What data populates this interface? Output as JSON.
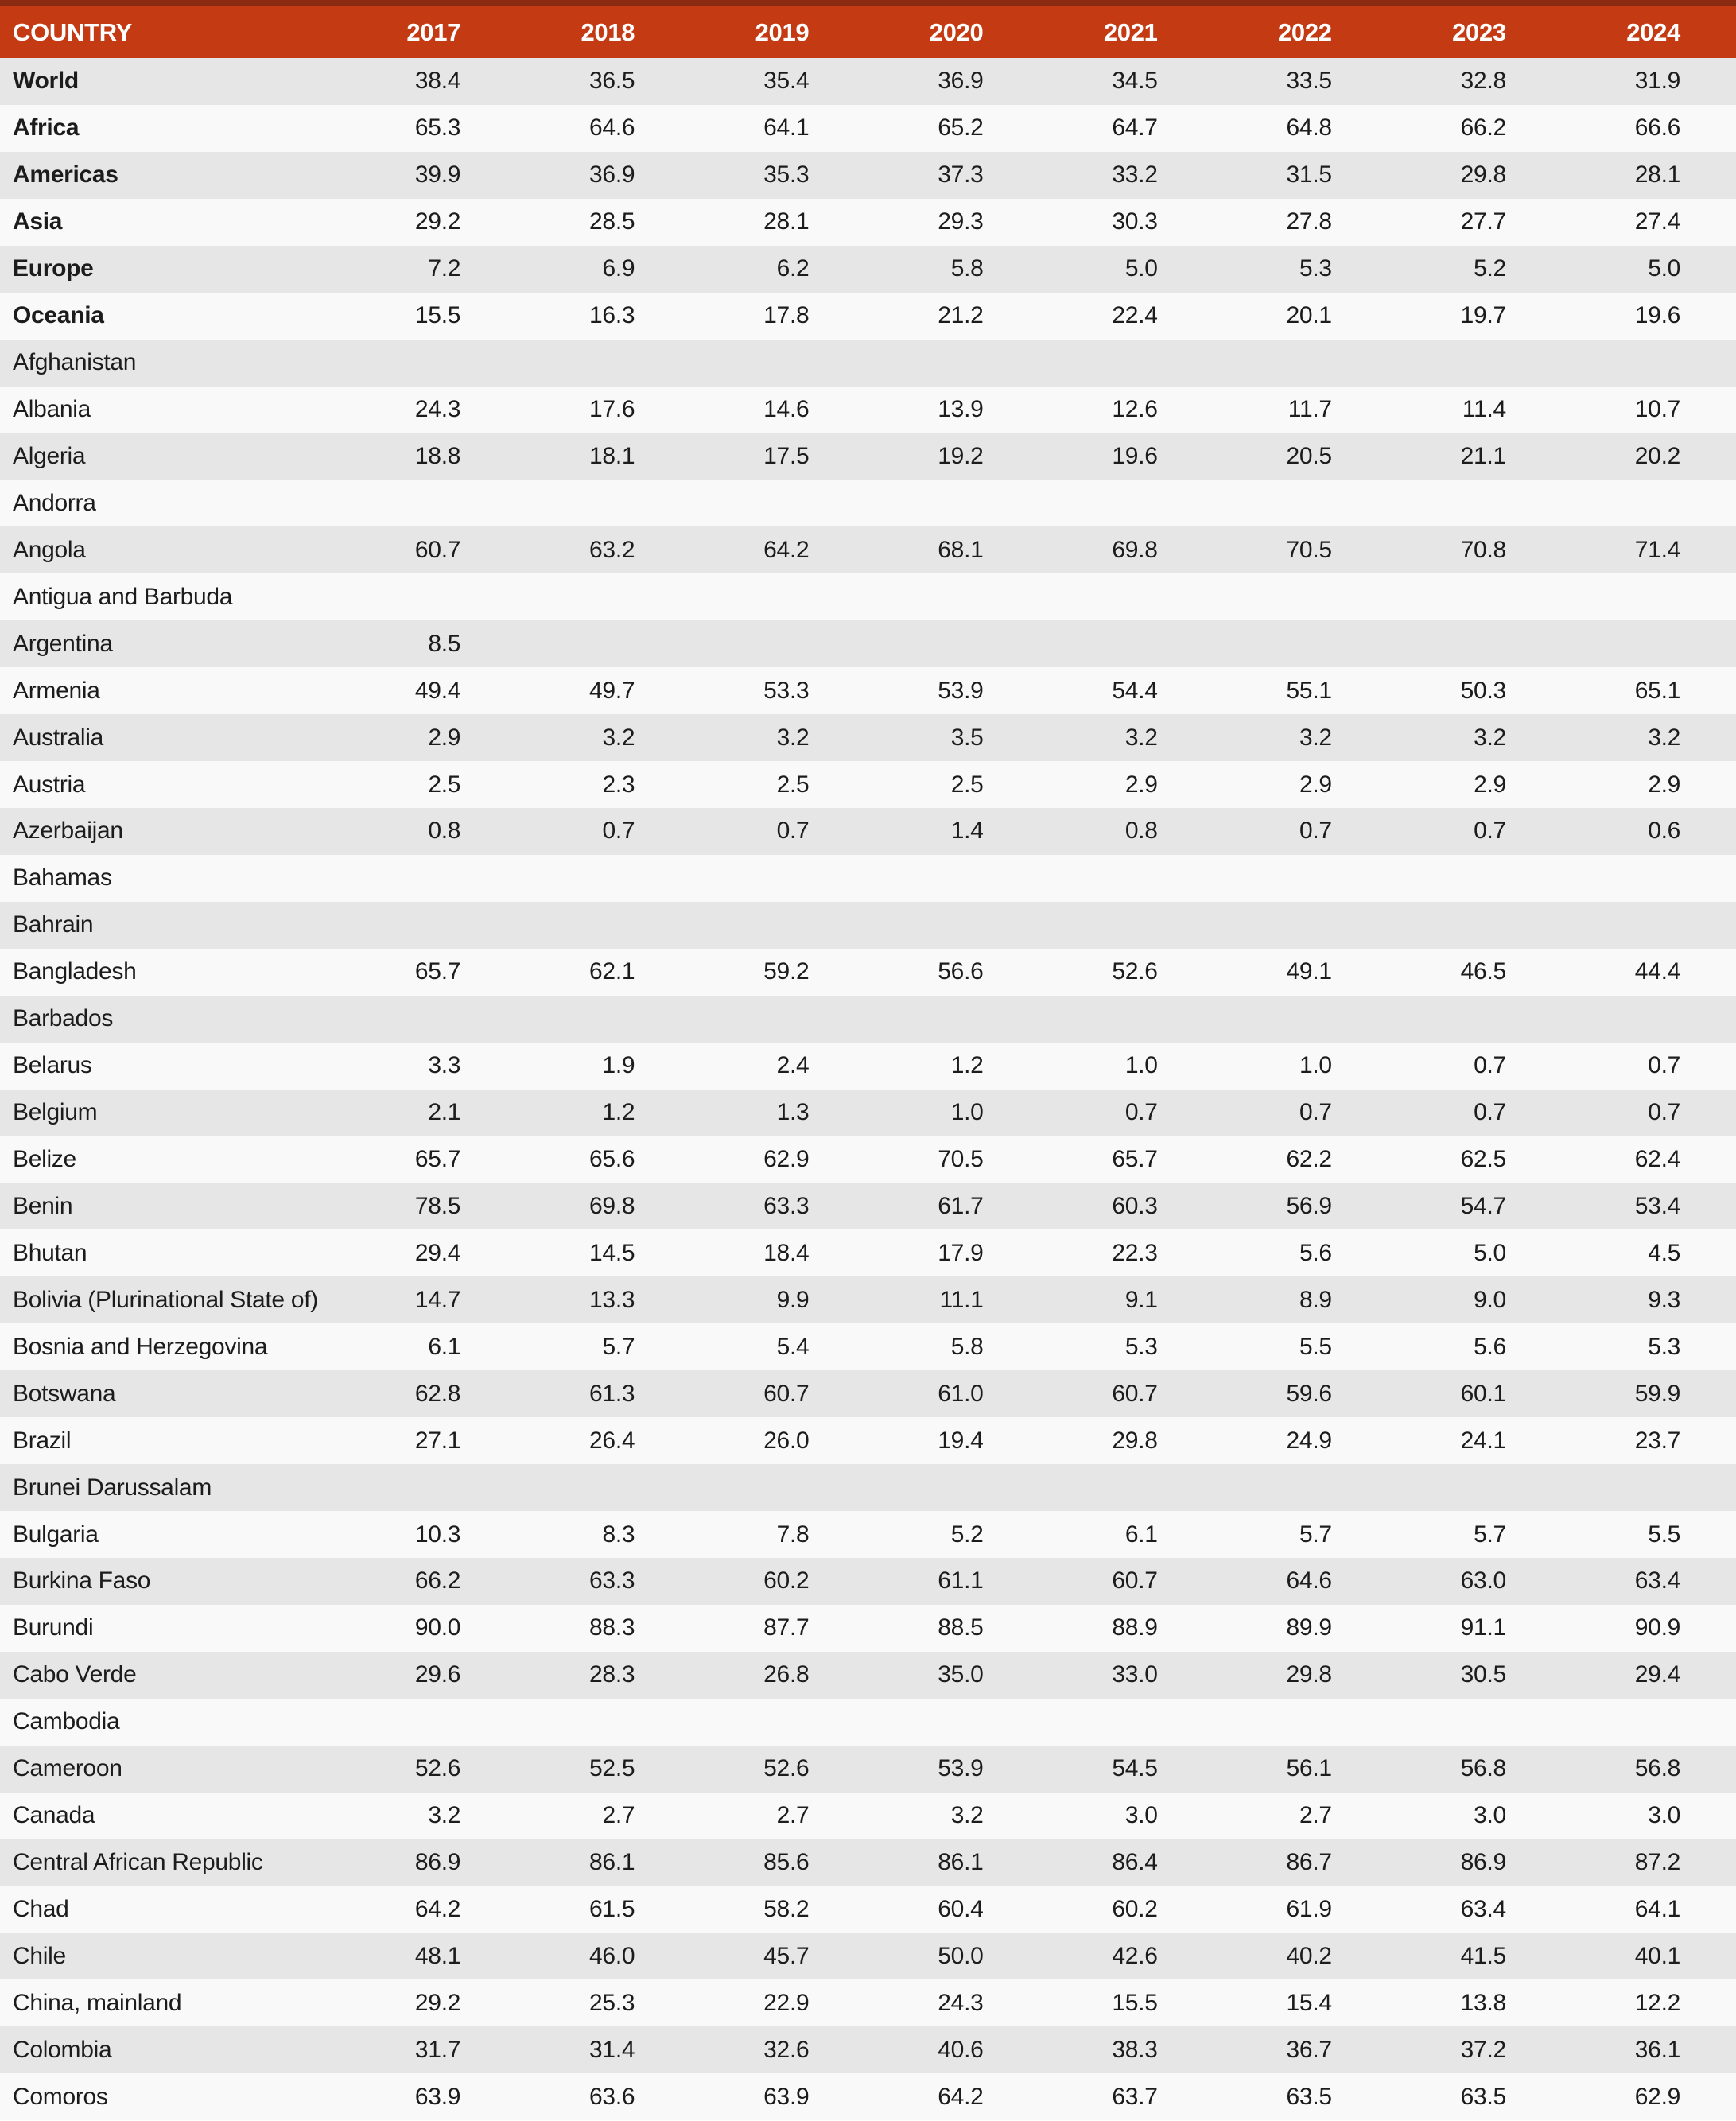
{
  "colors": {
    "header_bg": "#c43a13",
    "header_top_band": "#8a2b11",
    "header_text": "#ffffff",
    "row_odd_bg": "#e7e6e6",
    "row_even_bg": "#f9f9f9",
    "body_text": "#1c1c1c"
  },
  "table": {
    "country_label": "COUNTRY",
    "years": [
      "2017",
      "2018",
      "2019",
      "2020",
      "2021",
      "2022",
      "2023",
      "2024"
    ],
    "rows": [
      {
        "name": "World",
        "bold": true,
        "values": [
          "38.4",
          "36.5",
          "35.4",
          "36.9",
          "34.5",
          "33.5",
          "32.8",
          "31.9"
        ]
      },
      {
        "name": "Africa",
        "bold": true,
        "values": [
          "65.3",
          "64.6",
          "64.1",
          "65.2",
          "64.7",
          "64.8",
          "66.2",
          "66.6"
        ]
      },
      {
        "name": "Americas",
        "bold": true,
        "values": [
          "39.9",
          "36.9",
          "35.3",
          "37.3",
          "33.2",
          "31.5",
          "29.8",
          "28.1"
        ]
      },
      {
        "name": "Asia",
        "bold": true,
        "values": [
          "29.2",
          "28.5",
          "28.1",
          "29.3",
          "30.3",
          "27.8",
          "27.7",
          "27.4"
        ]
      },
      {
        "name": "Europe",
        "bold": true,
        "values": [
          "7.2",
          "6.9",
          "6.2",
          "5.8",
          "5.0",
          "5.3",
          "5.2",
          "5.0"
        ]
      },
      {
        "name": "Oceania",
        "bold": true,
        "values": [
          "15.5",
          "16.3",
          "17.8",
          "21.2",
          "22.4",
          "20.1",
          "19.7",
          "19.6"
        ]
      },
      {
        "name": "Afghanistan",
        "bold": false,
        "values": [
          "",
          "",
          "",
          "",
          "",
          "",
          "",
          ""
        ]
      },
      {
        "name": "Albania",
        "bold": false,
        "values": [
          "24.3",
          "17.6",
          "14.6",
          "13.9",
          "12.6",
          "11.7",
          "11.4",
          "10.7"
        ]
      },
      {
        "name": "Algeria",
        "bold": false,
        "values": [
          "18.8",
          "18.1",
          "17.5",
          "19.2",
          "19.6",
          "20.5",
          "21.1",
          "20.2"
        ]
      },
      {
        "name": "Andorra",
        "bold": false,
        "values": [
          "",
          "",
          "",
          "",
          "",
          "",
          "",
          ""
        ]
      },
      {
        "name": "Angola",
        "bold": false,
        "values": [
          "60.7",
          "63.2",
          "64.2",
          "68.1",
          "69.8",
          "70.5",
          "70.8",
          "71.4"
        ]
      },
      {
        "name": "Antigua and Barbuda",
        "bold": false,
        "values": [
          "",
          "",
          "",
          "",
          "",
          "",
          "",
          ""
        ]
      },
      {
        "name": "Argentina",
        "bold": false,
        "values": [
          "8.5",
          "",
          "",
          "",
          "",
          "",
          "",
          ""
        ]
      },
      {
        "name": "Armenia",
        "bold": false,
        "values": [
          "49.4",
          "49.7",
          "53.3",
          "53.9",
          "54.4",
          "55.1",
          "50.3",
          "65.1"
        ]
      },
      {
        "name": "Australia",
        "bold": false,
        "values": [
          "2.9",
          "3.2",
          "3.2",
          "3.5",
          "3.2",
          "3.2",
          "3.2",
          "3.2"
        ]
      },
      {
        "name": "Austria",
        "bold": false,
        "values": [
          "2.5",
          "2.3",
          "2.5",
          "2.5",
          "2.9",
          "2.9",
          "2.9",
          "2.9"
        ]
      },
      {
        "name": "Azerbaijan",
        "bold": false,
        "values": [
          "0.8",
          "0.7",
          "0.7",
          "1.4",
          "0.8",
          "0.7",
          "0.7",
          "0.6"
        ]
      },
      {
        "name": "Bahamas",
        "bold": false,
        "values": [
          "",
          "",
          "",
          "",
          "",
          "",
          "",
          ""
        ]
      },
      {
        "name": "Bahrain",
        "bold": false,
        "values": [
          "",
          "",
          "",
          "",
          "",
          "",
          "",
          ""
        ]
      },
      {
        "name": "Bangladesh",
        "bold": false,
        "values": [
          "65.7",
          "62.1",
          "59.2",
          "56.6",
          "52.6",
          "49.1",
          "46.5",
          "44.4"
        ]
      },
      {
        "name": "Barbados",
        "bold": false,
        "values": [
          "",
          "",
          "",
          "",
          "",
          "",
          "",
          ""
        ]
      },
      {
        "name": "Belarus",
        "bold": false,
        "values": [
          "3.3",
          "1.9",
          "2.4",
          "1.2",
          "1.0",
          "1.0",
          "0.7",
          "0.7"
        ]
      },
      {
        "name": "Belgium",
        "bold": false,
        "values": [
          "2.1",
          "1.2",
          "1.3",
          "1.0",
          "0.7",
          "0.7",
          "0.7",
          "0.7"
        ]
      },
      {
        "name": "Belize",
        "bold": false,
        "values": [
          "65.7",
          "65.6",
          "62.9",
          "70.5",
          "65.7",
          "62.2",
          "62.5",
          "62.4"
        ]
      },
      {
        "name": "Benin",
        "bold": false,
        "values": [
          "78.5",
          "69.8",
          "63.3",
          "61.7",
          "60.3",
          "56.9",
          "54.7",
          "53.4"
        ]
      },
      {
        "name": "Bhutan",
        "bold": false,
        "values": [
          "29.4",
          "14.5",
          "18.4",
          "17.9",
          "22.3",
          "5.6",
          "5.0",
          "4.5"
        ]
      },
      {
        "name": "Bolivia (Plurinational State of)",
        "bold": false,
        "values": [
          "14.7",
          "13.3",
          "9.9",
          "11.1",
          "9.1",
          "8.9",
          "9.0",
          "9.3"
        ]
      },
      {
        "name": "Bosnia and Herzegovina",
        "bold": false,
        "values": [
          "6.1",
          "5.7",
          "5.4",
          "5.8",
          "5.3",
          "5.5",
          "5.6",
          "5.3"
        ]
      },
      {
        "name": "Botswana",
        "bold": false,
        "values": [
          "62.8",
          "61.3",
          "60.7",
          "61.0",
          "60.7",
          "59.6",
          "60.1",
          "59.9"
        ]
      },
      {
        "name": "Brazil",
        "bold": false,
        "values": [
          "27.1",
          "26.4",
          "26.0",
          "19.4",
          "29.8",
          "24.9",
          "24.1",
          "23.7"
        ]
      },
      {
        "name": "Brunei Darussalam",
        "bold": false,
        "values": [
          "",
          "",
          "",
          "",
          "",
          "",
          "",
          ""
        ]
      },
      {
        "name": "Bulgaria",
        "bold": false,
        "values": [
          "10.3",
          "8.3",
          "7.8",
          "5.2",
          "6.1",
          "5.7",
          "5.7",
          "5.5"
        ]
      },
      {
        "name": "Burkina Faso",
        "bold": false,
        "values": [
          "66.2",
          "63.3",
          "60.2",
          "61.1",
          "60.7",
          "64.6",
          "63.0",
          "63.4"
        ]
      },
      {
        "name": "Burundi",
        "bold": false,
        "values": [
          "90.0",
          "88.3",
          "87.7",
          "88.5",
          "88.9",
          "89.9",
          "91.1",
          "90.9"
        ]
      },
      {
        "name": "Cabo Verde",
        "bold": false,
        "values": [
          "29.6",
          "28.3",
          "26.8",
          "35.0",
          "33.0",
          "29.8",
          "30.5",
          "29.4"
        ]
      },
      {
        "name": "Cambodia",
        "bold": false,
        "values": [
          "",
          "",
          "",
          "",
          "",
          "",
          "",
          ""
        ]
      },
      {
        "name": "Cameroon",
        "bold": false,
        "values": [
          "52.6",
          "52.5",
          "52.6",
          "53.9",
          "54.5",
          "56.1",
          "56.8",
          "56.8"
        ]
      },
      {
        "name": "Canada",
        "bold": false,
        "values": [
          "3.2",
          "2.7",
          "2.7",
          "3.2",
          "3.0",
          "2.7",
          "3.0",
          "3.0"
        ]
      },
      {
        "name": "Central African Republic",
        "bold": false,
        "values": [
          "86.9",
          "86.1",
          "85.6",
          "86.1",
          "86.4",
          "86.7",
          "86.9",
          "87.2"
        ]
      },
      {
        "name": "Chad",
        "bold": false,
        "values": [
          "64.2",
          "61.5",
          "58.2",
          "60.4",
          "60.2",
          "61.9",
          "63.4",
          "64.1"
        ]
      },
      {
        "name": "Chile",
        "bold": false,
        "values": [
          "48.1",
          "46.0",
          "45.7",
          "50.0",
          "42.6",
          "40.2",
          "41.5",
          "40.1"
        ]
      },
      {
        "name": "China, mainland",
        "bold": false,
        "values": [
          "29.2",
          "25.3",
          "22.9",
          "24.3",
          "15.5",
          "15.4",
          "13.8",
          "12.2"
        ]
      },
      {
        "name": "Colombia",
        "bold": false,
        "values": [
          "31.7",
          "31.4",
          "32.6",
          "40.6",
          "38.3",
          "36.7",
          "37.2",
          "36.1"
        ]
      },
      {
        "name": "Comoros",
        "bold": false,
        "values": [
          "63.9",
          "63.6",
          "63.9",
          "64.2",
          "63.7",
          "63.5",
          "63.5",
          "62.9"
        ]
      }
    ]
  }
}
